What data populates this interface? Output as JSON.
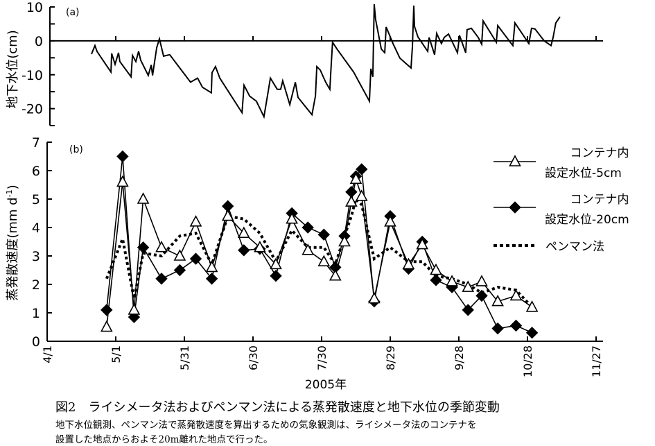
{
  "chart_data": [
    {
      "type": "line",
      "panel_label": "(a)",
      "title": "",
      "xlabel": "",
      "ylabel": "地下水位(cm)",
      "ylim": [
        -25,
        10
      ],
      "yticks": [
        10,
        5,
        0,
        -5,
        -10,
        -15,
        -20,
        -25
      ],
      "ytick_labels": [
        "10",
        "0",
        "-10",
        "-20"
      ],
      "ytick_label_values": [
        10,
        0,
        -10,
        -20
      ],
      "xlim_days_since_apr1": [
        0,
        240
      ],
      "x_unit": "days since 4/1/2005",
      "series": [
        {
          "name": "地下水位",
          "style": "solid",
          "points": [
            [
              19.4,
              -3.9
            ],
            [
              20.9,
              -1.4
            ],
            [
              21.8,
              -3.1
            ],
            [
              27.9,
              -9.2
            ],
            [
              28.2,
              -3.7
            ],
            [
              29.7,
              -6.9
            ],
            [
              31.2,
              -3.5
            ],
            [
              31.8,
              -6.1
            ],
            [
              36.7,
              -10.6
            ],
            [
              37.3,
              -4.3
            ],
            [
              38.8,
              -6.1
            ],
            [
              40,
              -3.1
            ],
            [
              40.9,
              -5.7
            ],
            [
              44.2,
              -10.2
            ],
            [
              45.5,
              -7.1
            ],
            [
              46.1,
              -10.2
            ],
            [
              47.9,
              -2.0
            ],
            [
              49.1,
              0.6
            ],
            [
              50.9,
              -4.5
            ],
            [
              53.6,
              -4.1
            ],
            [
              62.7,
              -12.2
            ],
            [
              65.8,
              -11
            ],
            [
              67.9,
              -13.7
            ],
            [
              71.8,
              -15.3
            ],
            [
              72.1,
              -9.4
            ],
            [
              73.6,
              -7.6
            ],
            [
              75.5,
              -11
            ],
            [
              85.2,
              -21.2
            ],
            [
              86.1,
              -13.1
            ],
            [
              88.5,
              -16.3
            ],
            [
              91.5,
              -17.8
            ],
            [
              94.8,
              -22.4
            ],
            [
              95.8,
              -18.4
            ],
            [
              97.6,
              -11
            ],
            [
              100.6,
              -14.3
            ],
            [
              102.1,
              -14.3
            ],
            [
              103,
              -11.8
            ],
            [
              106.1,
              -18.8
            ],
            [
              108.5,
              -12.2
            ],
            [
              109.7,
              -16.7
            ],
            [
              115.8,
              -21.8
            ],
            [
              117.3,
              -16.3
            ],
            [
              117.9,
              -7.6
            ],
            [
              119.4,
              -8.6
            ],
            [
              121.8,
              -12.2
            ],
            [
              123.6,
              -14.3
            ],
            [
              124.2,
              -6.9
            ],
            [
              124.8,
              -0.4
            ],
            [
              126.7,
              -2.4
            ],
            [
              134,
              -9.2
            ],
            [
              140.9,
              -17.8
            ],
            [
              141.5,
              -8.2
            ],
            [
              142.4,
              -10.6
            ],
            [
              143,
              10.8
            ],
            [
              143.6,
              6.3
            ],
            [
              146.1,
              -2.4
            ],
            [
              147.6,
              -3.5
            ],
            [
              148.2,
              4.1
            ],
            [
              151.2,
              -0.8
            ],
            [
              154.2,
              -5.1
            ],
            [
              159.1,
              -8
            ],
            [
              159.7,
              -1.8
            ],
            [
              160.3,
              10.4
            ],
            [
              160.6,
              4.3
            ],
            [
              162.1,
              1.2
            ],
            [
              166.4,
              -3.1
            ],
            [
              167,
              1
            ],
            [
              169.4,
              -4.1
            ],
            [
              170.3,
              2.2
            ],
            [
              172.4,
              -0.8
            ],
            [
              173.6,
              1
            ],
            [
              175.5,
              2
            ],
            [
              179.4,
              -3.5
            ],
            [
              180.3,
              1.6
            ],
            [
              183,
              -3.5
            ],
            [
              183.6,
              3.3
            ],
            [
              185.5,
              3.7
            ],
            [
              188.5,
              1
            ],
            [
              190,
              -1
            ],
            [
              190.6,
              5.9
            ],
            [
              196.4,
              -0.4
            ],
            [
              197,
              4.5
            ],
            [
              203.6,
              -1.4
            ],
            [
              204.5,
              5.3
            ],
            [
              210.6,
              -0.8
            ],
            [
              211.8,
              3.7
            ],
            [
              213.3,
              3.5
            ],
            [
              217.3,
              0
            ],
            [
              220.3,
              -1.4
            ],
            [
              221.2,
              1
            ],
            [
              222.4,
              5.3
            ],
            [
              224.2,
              7.1
            ]
          ]
        }
      ]
    },
    {
      "type": "line",
      "panel_label": "(b)",
      "title": "",
      "xlabel": "2005年",
      "ylabel": "蒸発散速度(mm d",
      "ylabel_sup": "-1",
      "ylabel_end": ")",
      "ylim": [
        0,
        7
      ],
      "yticks": [
        "0",
        "1",
        "2",
        "3",
        "4",
        "5",
        "6",
        "7"
      ],
      "xlim_days_since_apr1": [
        0,
        240
      ],
      "x_unit": "days since 4/1/2005",
      "xtick_days": [
        0,
        30,
        60,
        90,
        120,
        150,
        180,
        210,
        240
      ],
      "xtick_labels": [
        "4/1",
        "5/1",
        "5/31",
        "6/30",
        "7/30",
        "8/29",
        "9/28",
        "10/28",
        "11/27"
      ],
      "legend_position": "top-right",
      "series": [
        {
          "name_line1": "コンテナ内",
          "name_line2": "設定水位-5cm",
          "marker": "open-triangle",
          "style": "solid",
          "x": [
            26,
            33,
            38,
            42,
            50,
            58,
            65,
            72,
            79,
            86,
            93,
            100,
            107,
            114,
            121,
            126,
            130,
            133,
            135,
            137.5,
            143,
            150,
            158,
            164,
            170,
            177,
            184,
            190,
            197,
            205,
            212
          ],
          "y": [
            0.5,
            5.6,
            1.1,
            5.0,
            3.3,
            3.0,
            4.2,
            2.6,
            4.4,
            3.8,
            3.3,
            2.7,
            4.3,
            3.2,
            2.8,
            2.3,
            3.5,
            4.9,
            5.7,
            5.1,
            1.5,
            4.2,
            2.7,
            3.4,
            2.5,
            2.1,
            1.9,
            2.1,
            1.4,
            1.6,
            1.2
          ]
        },
        {
          "name_line1": "コンテナ内",
          "name_line2": "設定水位-20cm",
          "marker": "filled-diamond",
          "style": "solid",
          "x": [
            26,
            33,
            38,
            42,
            50,
            58,
            65,
            72,
            79,
            86,
            93,
            100,
            107,
            114,
            121,
            126,
            130,
            133,
            135,
            137.5,
            143,
            150,
            158,
            164,
            170,
            177,
            184,
            190,
            197,
            205,
            212
          ],
          "y": [
            1.1,
            6.5,
            0.85,
            3.3,
            2.2,
            2.5,
            2.9,
            2.2,
            4.75,
            3.2,
            3.25,
            2.3,
            4.5,
            4.0,
            3.75,
            2.6,
            3.7,
            5.25,
            5.8,
            6.05,
            1.4,
            4.4,
            2.55,
            3.5,
            2.15,
            1.9,
            1.1,
            1.6,
            0.45,
            0.55,
            0.3
          ]
        },
        {
          "name": "ペンマン法",
          "marker": "none",
          "style": "dotted",
          "x": [
            26,
            33,
            38,
            42,
            50,
            58,
            65,
            72,
            79,
            86,
            93,
            100,
            107,
            114,
            121,
            126,
            130,
            133,
            135,
            137.5,
            143,
            150,
            158,
            164,
            170,
            177,
            184,
            190,
            197,
            205,
            212
          ],
          "y": [
            2.2,
            3.6,
            1.5,
            3.1,
            3.0,
            3.7,
            3.8,
            2.7,
            4.4,
            4.3,
            3.8,
            2.8,
            3.9,
            3.3,
            3.3,
            2.7,
            3.7,
            4.4,
            5.0,
            4.8,
            2.9,
            3.3,
            2.8,
            2.8,
            2.3,
            2.2,
            2.0,
            1.7,
            1.9,
            1.8,
            1.2
          ]
        }
      ]
    }
  ],
  "caption": {
    "title": "図2　ライシメータ法およびペンマン法による蒸発散速度と地下水位の季節変動",
    "line1": "地下水位観測、ペンマン法で蒸発散速度を算出するための気象観測は、ライシメータ法のコンテナを",
    "line2": "設置した地点からおよそ20m離れた地点で行った。"
  }
}
